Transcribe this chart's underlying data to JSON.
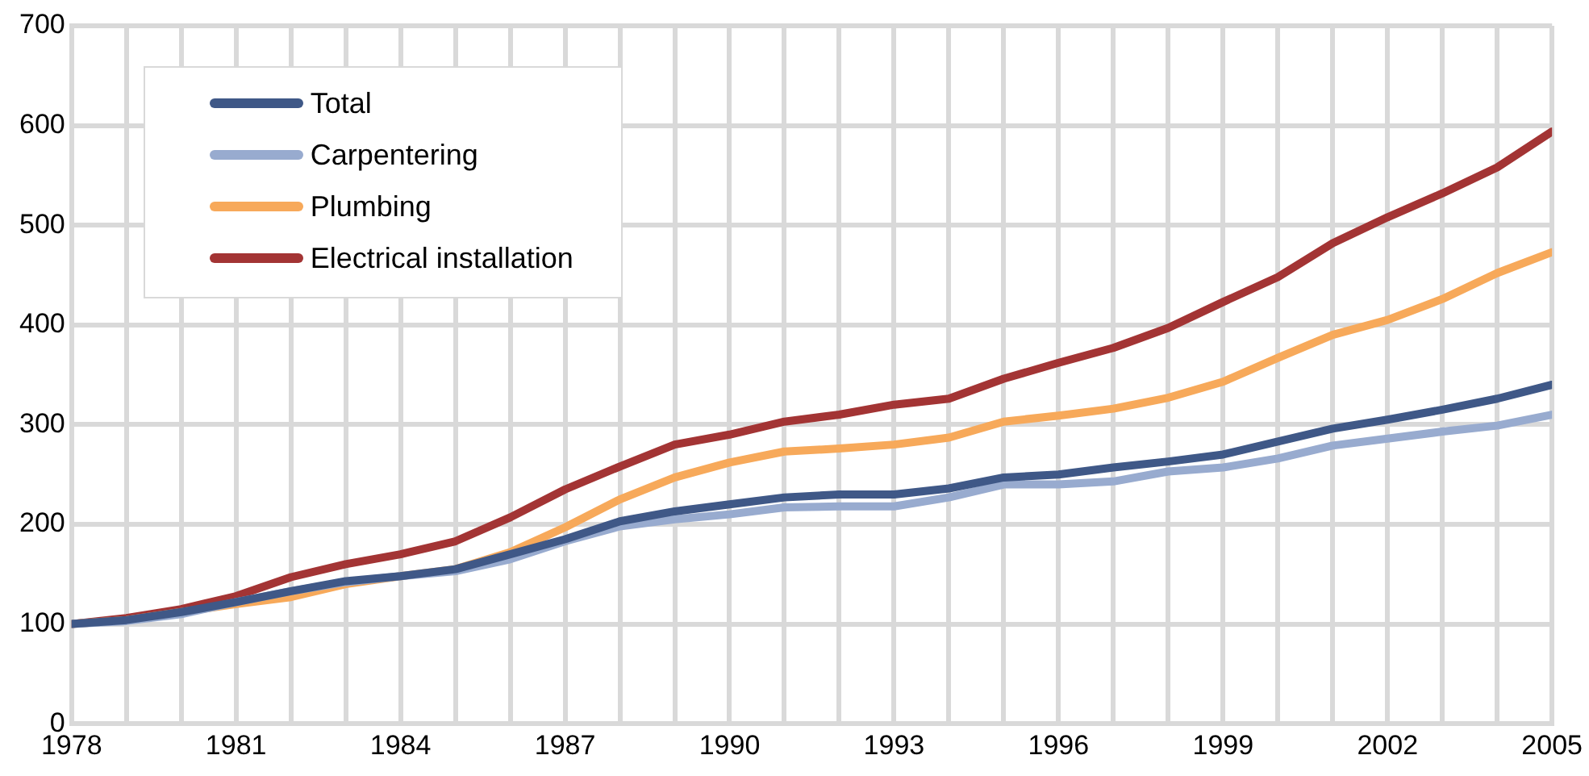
{
  "chart_data": {
    "type": "line",
    "x": [
      1978,
      1979,
      1980,
      1981,
      1982,
      1983,
      1984,
      1985,
      1986,
      1987,
      1988,
      1989,
      1990,
      1991,
      1992,
      1993,
      1994,
      1995,
      1996,
      1997,
      1998,
      1999,
      2000,
      2001,
      2002,
      2003,
      2004,
      2005
    ],
    "series": [
      {
        "name": "Total",
        "color": "#3f5887",
        "values": [
          100,
          104,
          112,
          122,
          133,
          143,
          148,
          155,
          170,
          185,
          203,
          213,
          220,
          227,
          230,
          230,
          236,
          247,
          250,
          257,
          263,
          270,
          283,
          296,
          305,
          315,
          326,
          340
        ]
      },
      {
        "name": "Carpentering",
        "color": "#98abcf",
        "values": [
          100,
          103,
          110,
          122,
          133,
          142,
          148,
          153,
          165,
          183,
          198,
          205,
          210,
          217,
          218,
          218,
          227,
          240,
          240,
          243,
          253,
          257,
          266,
          279,
          286,
          293,
          299,
          310
        ]
      },
      {
        "name": "Plumbing",
        "color": "#f7a95a",
        "values": [
          100,
          104,
          112,
          120,
          127,
          140,
          148,
          155,
          172,
          197,
          225,
          247,
          262,
          273,
          276,
          280,
          287,
          303,
          309,
          316,
          327,
          343,
          367,
          390,
          405,
          426,
          452,
          473
        ]
      },
      {
        "name": "Electrical installation",
        "color": "#a33434",
        "values": [
          100,
          106,
          115,
          128,
          147,
          160,
          170,
          183,
          207,
          235,
          258,
          280,
          290,
          303,
          310,
          320,
          326,
          346,
          362,
          377,
          397,
          423,
          448,
          482,
          508,
          532,
          558,
          594
        ]
      }
    ],
    "xlim": [
      1978,
      2005
    ],
    "xticks": [
      1978,
      {
        "value": 1979,
        "label": null
      },
      {
        "value": 1980,
        "label": null
      },
      1981,
      {
        "value": 1982,
        "label": null
      },
      {
        "value": 1983,
        "label": null
      },
      1984,
      {
        "value": 1985,
        "label": null
      },
      {
        "value": 1986,
        "label": null
      },
      1987,
      {
        "value": 1988,
        "label": null
      },
      {
        "value": 1989,
        "label": null
      },
      1990,
      {
        "value": 1991,
        "label": null
      },
      {
        "value": 1992,
        "label": null
      },
      1993,
      {
        "value": 1994,
        "label": null
      },
      {
        "value": 1995,
        "label": null
      },
      1996,
      {
        "value": 1997,
        "label": null
      },
      {
        "value": 1998,
        "label": null
      },
      1999,
      {
        "value": 2000,
        "label": null
      },
      {
        "value": 2001,
        "label": null
      },
      2002,
      {
        "value": 2003,
        "label": null
      },
      {
        "value": 2004,
        "label": null
      },
      2005
    ],
    "ylim": [
      0,
      700
    ],
    "yticks": [
      0,
      100,
      200,
      300,
      400,
      500,
      600,
      700
    ],
    "grid": true,
    "legend": "top left",
    "marker": "none",
    "line_style": "solid"
  }
}
